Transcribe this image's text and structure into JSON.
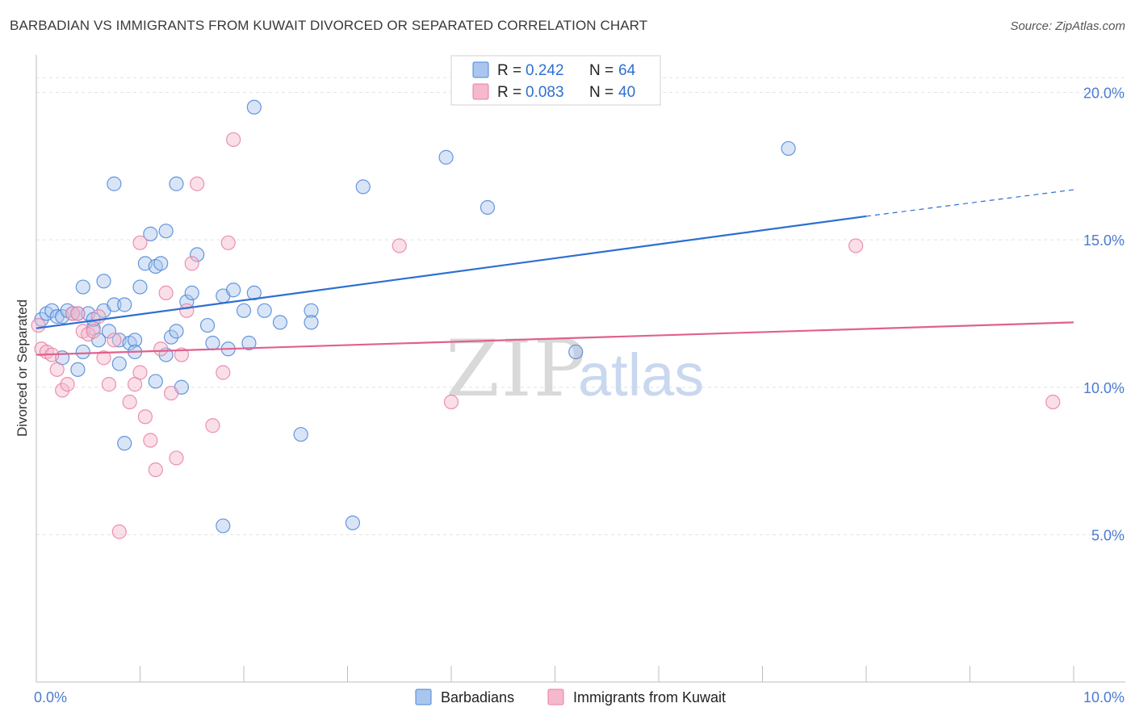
{
  "header": {
    "title": "BARBADIAN VS IMMIGRANTS FROM KUWAIT DIVORCED OR SEPARATED CORRELATION CHART",
    "source": "Source: ZipAtlas.com"
  },
  "watermark": {
    "zip": "ZIP",
    "atlas": "atlas"
  },
  "legend_box": {
    "rows": [
      {
        "r_label": "R = ",
        "r_value": "0.242",
        "n_label": "N = ",
        "n_value": "64"
      },
      {
        "r_label": "R = ",
        "r_value": "0.083",
        "n_label": "N = ",
        "n_value": "40"
      }
    ]
  },
  "colors": {
    "blue": "#4a86d8",
    "blue_fill": "#aac6ee",
    "blue_line": "#2d6fd0",
    "pink": "#e97ea6",
    "pink_fill": "#f5b8cd",
    "pink_line": "#e0608f",
    "grid": "#e3e3e3",
    "axis": "#bdbdbd"
  },
  "chart_data": {
    "type": "scatter",
    "title": "BARBADIAN VS IMMIGRANTS FROM KUWAIT DIVORCED OR SEPARATED CORRELATION CHART",
    "xlabel": "",
    "ylabel": "Divorced or Separated",
    "xlim": [
      0,
      10
    ],
    "ylim": [
      0,
      21
    ],
    "x_tick_labels": [
      {
        "value": 0,
        "label": "0.0%"
      },
      {
        "value": 10,
        "label": "10.0%"
      }
    ],
    "y_tick_labels": [
      {
        "value": 5,
        "label": "5.0%"
      },
      {
        "value": 10,
        "label": "10.0%"
      },
      {
        "value": 15,
        "label": "15.0%"
      },
      {
        "value": 20,
        "label": "20.0%"
      }
    ],
    "x_minor_ticks": [
      0,
      1,
      2,
      3,
      4,
      5,
      6,
      7,
      8,
      9,
      10
    ],
    "grid": true,
    "legend_position": "top-center",
    "series": [
      {
        "name": "Barbadians",
        "color": "#4a86d8",
        "r": 0.242,
        "n": 64,
        "trend": {
          "x0": 0,
          "y0": 12.0,
          "x1": 8.0,
          "y1": 15.8,
          "dash_to_x": 10,
          "dash_to_y": 16.7
        },
        "points": [
          [
            0.05,
            12.3
          ],
          [
            0.1,
            12.5
          ],
          [
            0.15,
            12.6
          ],
          [
            0.2,
            12.4
          ],
          [
            0.25,
            12.4
          ],
          [
            0.3,
            12.6
          ],
          [
            0.35,
            12.5
          ],
          [
            0.4,
            12.5
          ],
          [
            0.45,
            13.4
          ],
          [
            0.5,
            12.5
          ],
          [
            0.55,
            12.0
          ],
          [
            0.6,
            11.6
          ],
          [
            0.65,
            12.6
          ],
          [
            0.7,
            11.9
          ],
          [
            0.75,
            12.8
          ],
          [
            0.8,
            11.6
          ],
          [
            0.85,
            12.8
          ],
          [
            0.9,
            11.5
          ],
          [
            0.95,
            11.6
          ],
          [
            1.0,
            13.4
          ],
          [
            1.05,
            14.2
          ],
          [
            1.1,
            15.2
          ],
          [
            1.15,
            14.1
          ],
          [
            1.2,
            14.2
          ],
          [
            1.25,
            15.3
          ],
          [
            1.3,
            11.7
          ],
          [
            1.35,
            11.9
          ],
          [
            1.4,
            10.0
          ],
          [
            1.45,
            12.9
          ],
          [
            1.5,
            13.2
          ],
          [
            1.55,
            14.5
          ],
          [
            1.7,
            11.5
          ],
          [
            1.8,
            13.1
          ],
          [
            1.85,
            11.3
          ],
          [
            1.9,
            13.3
          ],
          [
            2.0,
            12.6
          ],
          [
            2.05,
            11.5
          ],
          [
            2.1,
            13.2
          ],
          [
            2.2,
            12.6
          ],
          [
            2.35,
            12.2
          ],
          [
            2.65,
            12.6
          ],
          [
            0.25,
            11.0
          ],
          [
            0.4,
            10.6
          ],
          [
            0.45,
            11.2
          ],
          [
            0.65,
            13.6
          ],
          [
            0.75,
            16.9
          ],
          [
            0.8,
            10.8
          ],
          [
            0.85,
            8.1
          ],
          [
            1.15,
            10.2
          ],
          [
            1.65,
            12.1
          ],
          [
            2.55,
            8.4
          ],
          [
            3.05,
            5.4
          ],
          [
            1.8,
            5.3
          ],
          [
            2.1,
            19.5
          ],
          [
            3.15,
            16.8
          ],
          [
            3.95,
            17.8
          ],
          [
            4.35,
            16.1
          ],
          [
            5.2,
            11.2
          ],
          [
            7.25,
            18.1
          ],
          [
            1.35,
            16.9
          ],
          [
            0.55,
            12.3
          ],
          [
            0.95,
            11.2
          ],
          [
            1.25,
            11.1
          ],
          [
            2.65,
            12.2
          ]
        ]
      },
      {
        "name": "Immigrants from Kuwait",
        "color": "#e97ea6",
        "r": 0.083,
        "n": 40,
        "trend": {
          "x0": 0,
          "y0": 11.1,
          "x1": 10,
          "y1": 12.2
        },
        "points": [
          [
            0.02,
            12.1
          ],
          [
            0.05,
            11.3
          ],
          [
            0.1,
            11.2
          ],
          [
            0.15,
            11.1
          ],
          [
            0.2,
            10.6
          ],
          [
            0.25,
            9.9
          ],
          [
            0.3,
            10.1
          ],
          [
            0.35,
            12.5
          ],
          [
            0.4,
            12.5
          ],
          [
            0.45,
            11.9
          ],
          [
            0.5,
            11.8
          ],
          [
            0.55,
            11.9
          ],
          [
            0.6,
            12.4
          ],
          [
            0.65,
            11.0
          ],
          [
            0.7,
            10.1
          ],
          [
            0.75,
            11.6
          ],
          [
            0.8,
            5.1
          ],
          [
            0.9,
            9.5
          ],
          [
            0.95,
            10.1
          ],
          [
            1.0,
            10.5
          ],
          [
            1.05,
            9.0
          ],
          [
            1.1,
            8.2
          ],
          [
            1.15,
            7.2
          ],
          [
            1.2,
            11.3
          ],
          [
            1.25,
            13.2
          ],
          [
            1.3,
            9.8
          ],
          [
            1.35,
            7.6
          ],
          [
            1.4,
            11.1
          ],
          [
            1.45,
            12.6
          ],
          [
            1.5,
            14.2
          ],
          [
            1.55,
            16.9
          ],
          [
            1.7,
            8.7
          ],
          [
            1.8,
            10.5
          ],
          [
            1.85,
            14.9
          ],
          [
            1.9,
            18.4
          ],
          [
            3.5,
            14.8
          ],
          [
            4.0,
            9.5
          ],
          [
            7.9,
            14.8
          ],
          [
            9.8,
            9.5
          ],
          [
            1.0,
            14.9
          ]
        ]
      }
    ]
  },
  "bottom_legend": [
    {
      "label": "Barbadians"
    },
    {
      "label": "Immigrants from Kuwait"
    }
  ]
}
